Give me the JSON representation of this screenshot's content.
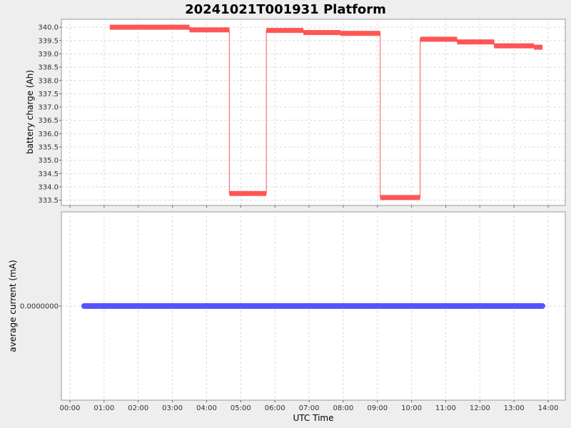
{
  "chart_data": {
    "type": "line",
    "title": "20241021T001931 Platform",
    "xlabel": "UTC Time",
    "x_ticks": [
      "00:00",
      "01:00",
      "02:00",
      "03:00",
      "04:00",
      "05:00",
      "06:00",
      "07:00",
      "08:00",
      "09:00",
      "10:00",
      "11:00",
      "12:00",
      "13:00",
      "14:00"
    ],
    "xlim": [
      "-00:15",
      "14:30"
    ],
    "grid": true,
    "colors": {
      "battery": "#ff5555",
      "current": "#5555ff"
    },
    "panels": [
      {
        "ylabel": "battery charge (Ah)",
        "ylim": [
          333.3,
          340.3
        ],
        "y_ticks": [
          "340.0",
          "339.5",
          "339.0",
          "338.5",
          "338.0",
          "337.5",
          "337.0",
          "336.5",
          "336.0",
          "335.5",
          "335.0",
          "334.5",
          "334.0",
          "333.5"
        ],
        "series": [
          {
            "type": "step",
            "points": [
              {
                "start": "01:10",
                "end": "03:30",
                "value": 340.0
              },
              {
                "start": "03:30",
                "end": "04:40",
                "value": 339.9
              },
              {
                "start": "04:40",
                "end": "05:45",
                "value": 333.75
              },
              {
                "start": "05:45",
                "end": "06:50",
                "value": 339.88
              },
              {
                "start": "06:50",
                "end": "07:55",
                "value": 339.8
              },
              {
                "start": "07:55",
                "end": "09:05",
                "value": 339.77
              },
              {
                "start": "09:05",
                "end": "10:15",
                "value": 333.6
              },
              {
                "start": "10:15",
                "end": "11:20",
                "value": 339.55
              },
              {
                "start": "11:20",
                "end": "12:25",
                "value": 339.45
              },
              {
                "start": "12:25",
                "end": "13:35",
                "value": 339.3
              },
              {
                "start": "13:35",
                "end": "13:50",
                "value": 339.25
              }
            ]
          }
        ]
      },
      {
        "ylabel": "average current (mA)",
        "y_ticks": [
          "0.0000000"
        ],
        "series": [
          {
            "type": "scatter",
            "start": "00:25",
            "end": "13:50",
            "value": 0.0
          }
        ]
      }
    ]
  }
}
